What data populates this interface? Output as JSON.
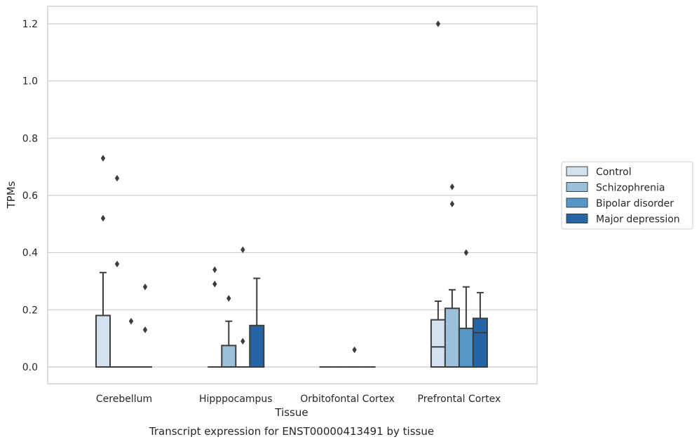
{
  "chart_data": {
    "type": "box",
    "caption": "Transcript expression for ENST00000413491 by tissue",
    "xlabel": "Tissue",
    "ylabel": "TPMs",
    "ylim": [
      -0.06,
      1.26
    ],
    "yticks": [
      0.0,
      0.2,
      0.4,
      0.6,
      0.8,
      1.0,
      1.2
    ],
    "categories": [
      "Cerebellum",
      "Hipppocampus",
      "Orbitofontal Cortex",
      "Prefrontal Cortex"
    ],
    "grid": true,
    "legend_position": "right",
    "series": [
      {
        "name": "Control",
        "color": "#d4e2f0",
        "boxes": [
          {
            "q1": 0.0,
            "median": 0.0,
            "q3": 0.18,
            "whisker_low": 0.0,
            "whisker_high": 0.33,
            "outliers": [
              0.52,
              0.73
            ]
          },
          {
            "q1": 0.0,
            "median": 0.0,
            "q3": 0.0,
            "whisker_low": 0.0,
            "whisker_high": 0.0,
            "outliers": [
              0.29,
              0.34
            ]
          },
          {
            "q1": 0.0,
            "median": 0.0,
            "q3": 0.0,
            "whisker_low": 0.0,
            "whisker_high": 0.0,
            "outliers": []
          },
          {
            "q1": 0.0,
            "median": 0.07,
            "q3": 0.165,
            "whisker_low": 0.0,
            "whisker_high": 0.23,
            "outliers": [
              1.2
            ]
          }
        ]
      },
      {
        "name": "Schizophrenia",
        "color": "#9ac1db",
        "boxes": [
          {
            "q1": 0.0,
            "median": 0.0,
            "q3": 0.0,
            "whisker_low": 0.0,
            "whisker_high": 0.0,
            "outliers": [
              0.36,
              0.66
            ]
          },
          {
            "q1": 0.0,
            "median": 0.0,
            "q3": 0.075,
            "whisker_low": 0.0,
            "whisker_high": 0.16,
            "outliers": [
              0.24
            ]
          },
          {
            "q1": 0.0,
            "median": 0.0,
            "q3": 0.0,
            "whisker_low": 0.0,
            "whisker_high": 0.0,
            "outliers": []
          },
          {
            "q1": 0.0,
            "median": 0.0,
            "q3": 0.205,
            "whisker_low": 0.0,
            "whisker_high": 0.27,
            "outliers": [
              0.57,
              0.63
            ]
          }
        ]
      },
      {
        "name": "Bipolar disorder",
        "color": "#5598c8",
        "boxes": [
          {
            "q1": 0.0,
            "median": 0.0,
            "q3": 0.0,
            "whisker_low": 0.0,
            "whisker_high": 0.0,
            "outliers": [
              0.16
            ]
          },
          {
            "q1": 0.0,
            "median": 0.0,
            "q3": 0.0,
            "whisker_low": 0.0,
            "whisker_high": 0.0,
            "outliers": [
              0.09,
              0.41
            ]
          },
          {
            "q1": 0.0,
            "median": 0.0,
            "q3": 0.0,
            "whisker_low": 0.0,
            "whisker_high": 0.0,
            "outliers": [
              0.06
            ]
          },
          {
            "q1": 0.0,
            "median": 0.0,
            "q3": 0.135,
            "whisker_low": 0.0,
            "whisker_high": 0.28,
            "outliers": [
              0.4
            ]
          }
        ]
      },
      {
        "name": "Major depression",
        "color": "#2565a5",
        "boxes": [
          {
            "q1": 0.0,
            "median": 0.0,
            "q3": 0.0,
            "whisker_low": 0.0,
            "whisker_high": 0.0,
            "outliers": [
              0.13,
              0.28
            ]
          },
          {
            "q1": 0.0,
            "median": 0.0,
            "q3": 0.145,
            "whisker_low": 0.0,
            "whisker_high": 0.31,
            "outliers": []
          },
          {
            "q1": 0.0,
            "median": 0.0,
            "q3": 0.0,
            "whisker_low": 0.0,
            "whisker_high": 0.0,
            "outliers": []
          },
          {
            "q1": 0.0,
            "median": 0.12,
            "q3": 0.17,
            "whisker_low": 0.0,
            "whisker_high": 0.26,
            "outliers": []
          }
        ]
      }
    ]
  }
}
